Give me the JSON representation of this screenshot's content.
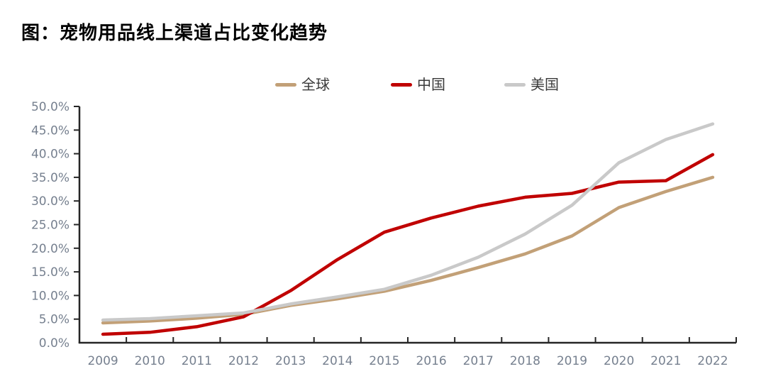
{
  "page": {
    "title": "图：宠物用品线上渠道占比变化趋势"
  },
  "legend": {
    "items": [
      {
        "label": "全球",
        "color": "#c2a077"
      },
      {
        "label": "中国",
        "color": "#c00000"
      },
      {
        "label": "美国",
        "color": "#c9c9c9"
      }
    ]
  },
  "colors": {
    "background": "#ffffff",
    "title": "#000000",
    "axis": "#262626",
    "tick_label": "#76808f",
    "legend_label": "#3a3a3a",
    "series_global": "#c2a077",
    "series_china": "#c00000",
    "series_us": "#c9c9c9"
  },
  "chart_data": {
    "type": "line",
    "title": "图：宠物用品线上渠道占比变化趋势",
    "xlabel": "",
    "ylabel": "",
    "categories": [
      "2009",
      "2010",
      "2011",
      "2012",
      "2013",
      "2014",
      "2015",
      "2016",
      "2017",
      "2018",
      "2019",
      "2020",
      "2021",
      "2022"
    ],
    "series": [
      {
        "name": "全球",
        "color": "#c2a077",
        "values": [
          4.2,
          4.6,
          5.2,
          6.0,
          7.9,
          9.3,
          10.9,
          13.2,
          15.9,
          18.8,
          22.6,
          28.6,
          32.0,
          35.0
        ]
      },
      {
        "name": "中国",
        "color": "#c00000",
        "values": [
          1.8,
          2.2,
          3.4,
          5.5,
          11.0,
          17.6,
          23.4,
          26.4,
          28.9,
          30.8,
          31.6,
          34.0,
          34.3,
          39.8
        ]
      },
      {
        "name": "美国",
        "color": "#c9c9c9",
        "values": [
          4.8,
          5.1,
          5.7,
          6.3,
          8.2,
          9.7,
          11.3,
          14.3,
          18.1,
          23.0,
          29.1,
          38.1,
          43.0,
          46.3
        ]
      }
    ],
    "ylim": [
      0,
      50
    ],
    "ytick_step": 5,
    "yticklabels": [
      "0.0%",
      "5.0%",
      "10.0%",
      "15.0%",
      "20.0%",
      "25.0%",
      "30.0%",
      "35.0%",
      "40.0%",
      "45.0%",
      "50.0%"
    ],
    "grid": false,
    "legend_position": "top",
    "unit": "percent"
  }
}
